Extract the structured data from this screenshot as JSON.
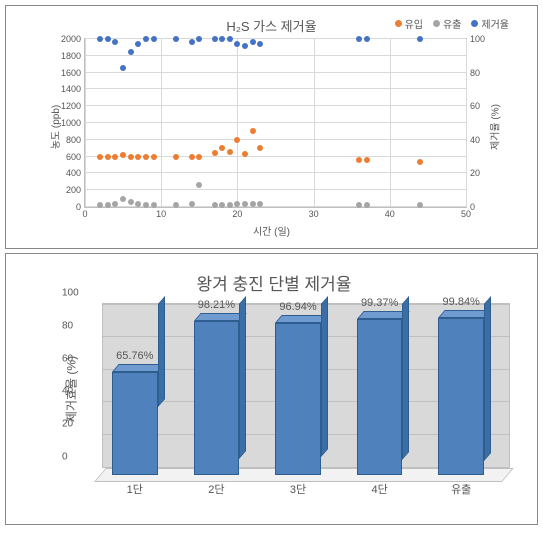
{
  "scatter": {
    "type": "scatter",
    "title": "H₂S 가스 제거율",
    "x_label": "시간 (일)",
    "y_left_label": "농도 (ppb)",
    "y_right_label": "제거율 (%)",
    "xlim": [
      0,
      50
    ],
    "xtick_step": 10,
    "ylim_left": [
      0,
      2000
    ],
    "ytick_left_step": 200,
    "ylim_right": [
      0,
      100
    ],
    "ytick_right_step": 20,
    "grid_color": "#d9d9d9",
    "axis_color": "#bfbfbf",
    "tick_fontsize": 9,
    "label_fontsize": 10,
    "title_fontsize": 13,
    "legend": [
      {
        "name": "유입",
        "color": "#ed7d31"
      },
      {
        "name": "유출",
        "color": "#a5a5a5"
      },
      {
        "name": "제거율",
        "color": "#4472c4"
      }
    ],
    "series_inflow": {
      "axis": "left",
      "color": "#ed7d31",
      "points": [
        [
          2,
          600
        ],
        [
          3,
          600
        ],
        [
          4,
          600
        ],
        [
          5,
          620
        ],
        [
          6,
          600
        ],
        [
          7,
          600
        ],
        [
          8,
          600
        ],
        [
          9,
          600
        ],
        [
          12,
          600
        ],
        [
          14,
          600
        ],
        [
          15,
          600
        ],
        [
          17,
          640
        ],
        [
          18,
          700
        ],
        [
          19,
          660
        ],
        [
          20,
          800
        ],
        [
          21,
          630
        ],
        [
          22,
          910
        ],
        [
          23,
          700
        ],
        [
          36,
          560
        ],
        [
          37,
          560
        ],
        [
          44,
          540
        ]
      ]
    },
    "series_outflow": {
      "axis": "left",
      "color": "#a5a5a5",
      "points": [
        [
          2,
          20
        ],
        [
          3,
          20
        ],
        [
          4,
          30
        ],
        [
          5,
          100
        ],
        [
          6,
          60
        ],
        [
          7,
          30
        ],
        [
          8,
          20
        ],
        [
          9,
          20
        ],
        [
          12,
          20
        ],
        [
          14,
          30
        ],
        [
          15,
          260
        ],
        [
          17,
          20
        ],
        [
          18,
          20
        ],
        [
          19,
          20
        ],
        [
          20,
          30
        ],
        [
          21,
          30
        ],
        [
          22,
          30
        ],
        [
          23,
          30
        ],
        [
          36,
          20
        ],
        [
          37,
          20
        ],
        [
          44,
          20
        ]
      ]
    },
    "series_removal": {
      "axis": "right",
      "color": "#4472c4",
      "points": [
        [
          2,
          100
        ],
        [
          3,
          100
        ],
        [
          4,
          98
        ],
        [
          5,
          83
        ],
        [
          6,
          92
        ],
        [
          7,
          97
        ],
        [
          8,
          100
        ],
        [
          9,
          100
        ],
        [
          12,
          100
        ],
        [
          14,
          98
        ],
        [
          15,
          100
        ],
        [
          17,
          100
        ],
        [
          18,
          100
        ],
        [
          19,
          100
        ],
        [
          20,
          97
        ],
        [
          21,
          96
        ],
        [
          22,
          98
        ],
        [
          23,
          97
        ],
        [
          36,
          100
        ],
        [
          37,
          100
        ],
        [
          44,
          100
        ]
      ]
    }
  },
  "barchart": {
    "type": "bar",
    "title": "왕겨 충진 단별 제거율",
    "y_label": "제거효율 (%)",
    "categories": [
      "1단",
      "2단",
      "3단",
      "4단",
      "유출"
    ],
    "values": [
      65.76,
      98.21,
      96.94,
      99.37,
      99.84
    ],
    "value_labels": [
      "65.76%",
      "98.21%",
      "96.94%",
      "99.37%",
      "99.84%"
    ],
    "bar_color": "#4f81bd",
    "bar_top_color": "#6f9bd0",
    "bar_side_color": "#3a6ea5",
    "bar_border": "#2e5d8f",
    "ylim": [
      0,
      100
    ],
    "ytick_step": 20,
    "back_wall_color": "#d9d9d9",
    "floor_color": "#f2f2f2",
    "grid_color": "#bfbfbf",
    "title_fontsize": 17,
    "label_fontsize": 12,
    "tick_fontsize": 10
  }
}
